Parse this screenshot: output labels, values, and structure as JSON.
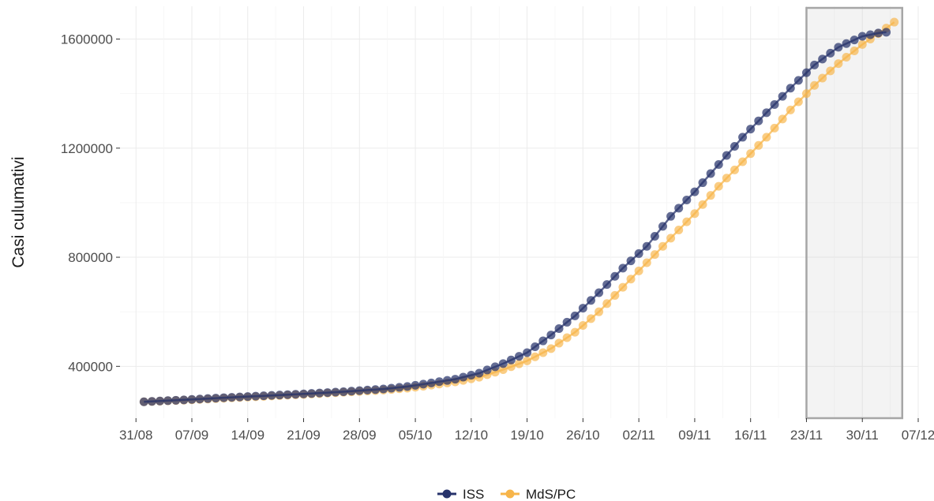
{
  "chart_data": {
    "type": "line",
    "title": "",
    "xlabel": "",
    "ylabel": "Casi culumativi",
    "x_axis": {
      "type": "date",
      "range": [
        "2020-08-29",
        "2020-12-07"
      ],
      "tick_labels": [
        "31/08",
        "07/09",
        "14/09",
        "21/09",
        "28/09",
        "05/10",
        "12/10",
        "19/10",
        "26/10",
        "02/11",
        "09/11",
        "16/11",
        "23/11",
        "30/11",
        "07/12"
      ],
      "tick_dates": [
        "2020-08-31",
        "2020-09-07",
        "2020-09-14",
        "2020-09-21",
        "2020-09-28",
        "2020-10-05",
        "2020-10-12",
        "2020-10-19",
        "2020-10-26",
        "2020-11-02",
        "2020-11-09",
        "2020-11-16",
        "2020-11-23",
        "2020-11-30",
        "2020-12-07"
      ]
    },
    "y_axis": {
      "range": [
        210000,
        1720000
      ],
      "ticks": [
        400000,
        800000,
        1200000,
        1600000
      ],
      "tick_labels": [
        "400000",
        "800000",
        "1200000",
        "1600000"
      ]
    },
    "grid": true,
    "legend": "bottom",
    "highlight_region": {
      "from": "2020-11-23",
      "to": "2020-12-05"
    },
    "series": [
      {
        "name": "ISS",
        "color": "#27336b",
        "points": [
          [
            "2020-09-01",
            270000
          ],
          [
            "2020-09-06",
            277000
          ],
          [
            "2020-09-11",
            285000
          ],
          [
            "2020-09-16",
            292000
          ],
          [
            "2020-09-21",
            299000
          ],
          [
            "2020-09-26",
            307000
          ],
          [
            "2020-10-01",
            317000
          ],
          [
            "2020-10-04",
            326000
          ],
          [
            "2020-10-07",
            339000
          ],
          [
            "2020-10-10",
            353000
          ],
          [
            "2020-10-13",
            375000
          ],
          [
            "2020-10-16",
            410000
          ],
          [
            "2020-10-19",
            450000
          ],
          [
            "2020-10-22",
            515000
          ],
          [
            "2020-10-25",
            585000
          ],
          [
            "2020-10-28",
            670000
          ],
          [
            "2020-10-31",
            760000
          ],
          [
            "2020-11-03",
            840000
          ],
          [
            "2020-11-06",
            950000
          ],
          [
            "2020-11-09",
            1040000
          ],
          [
            "2020-11-12",
            1140000
          ],
          [
            "2020-11-15",
            1240000
          ],
          [
            "2020-11-18",
            1330000
          ],
          [
            "2020-11-21",
            1420000
          ],
          [
            "2020-11-24",
            1505000
          ],
          [
            "2020-11-27",
            1570000
          ],
          [
            "2020-11-30",
            1610000
          ],
          [
            "2020-12-02",
            1622000
          ],
          [
            "2020-12-03",
            1625000
          ]
        ]
      },
      {
        "name": "MdS/PC",
        "color": "#f7b54a",
        "points": [
          [
            "2020-09-01",
            270000
          ],
          [
            "2020-09-06",
            276000
          ],
          [
            "2020-09-11",
            283000
          ],
          [
            "2020-09-16",
            290000
          ],
          [
            "2020-09-21",
            297000
          ],
          [
            "2020-09-26",
            305000
          ],
          [
            "2020-10-01",
            313000
          ],
          [
            "2020-10-04",
            320000
          ],
          [
            "2020-10-07",
            331000
          ],
          [
            "2020-10-10",
            343000
          ],
          [
            "2020-10-13",
            360000
          ],
          [
            "2020-10-16",
            388000
          ],
          [
            "2020-10-19",
            420000
          ],
          [
            "2020-10-22",
            465000
          ],
          [
            "2020-10-25",
            525000
          ],
          [
            "2020-10-28",
            600000
          ],
          [
            "2020-10-31",
            690000
          ],
          [
            "2020-11-03",
            780000
          ],
          [
            "2020-11-06",
            870000
          ],
          [
            "2020-11-09",
            960000
          ],
          [
            "2020-11-12",
            1060000
          ],
          [
            "2020-11-15",
            1150000
          ],
          [
            "2020-11-18",
            1240000
          ],
          [
            "2020-11-21",
            1340000
          ],
          [
            "2020-11-24",
            1430000
          ],
          [
            "2020-11-27",
            1510000
          ],
          [
            "2020-11-30",
            1580000
          ],
          [
            "2020-12-03",
            1640000
          ],
          [
            "2020-12-04",
            1662000
          ]
        ]
      }
    ]
  }
}
